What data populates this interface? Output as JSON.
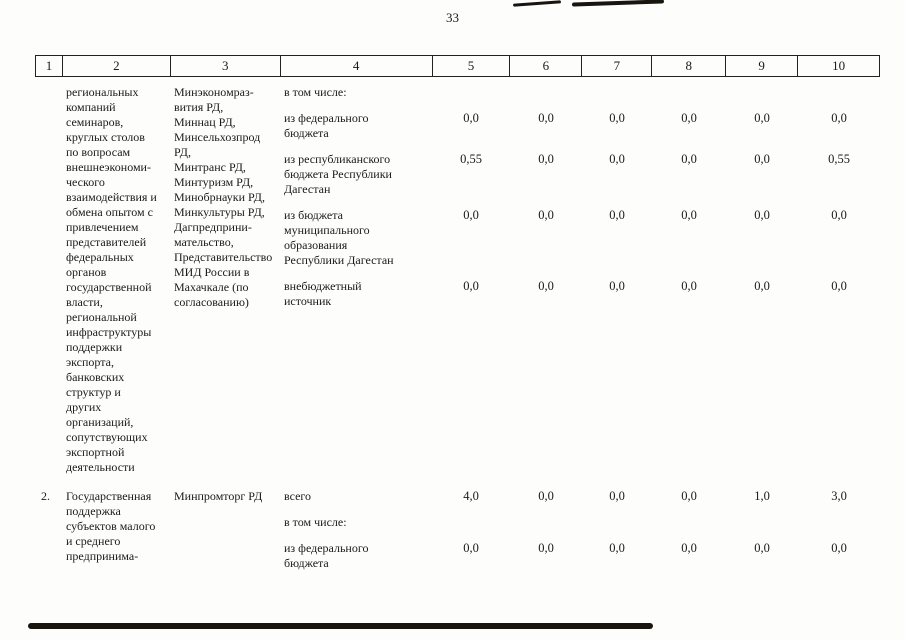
{
  "page": {
    "number": "33"
  },
  "table": {
    "header": [
      "1",
      "2",
      "3",
      "4",
      "5",
      "6",
      "7",
      "8",
      "9",
      "10"
    ],
    "rows": [
      {
        "num": "",
        "name": "региональных\nкомпаний\nсеминаров,\nкруглых столов\nпо вопросам\nвнешнеэкономи-\nческого\nвзаимодействия и\nобмена опытом с\nпривлечением\nпредставителей\nфедеральных\nорганов\nгосударственной\nвласти,\nрегиональной\nинфраструктуры\nподдержки\nэкспорта,\nбанковских\nструктур и\nдругих\nорганизаций,\nсопутствующих\nэкспортной\nдеятельности",
        "executor": "Минэкономраз-\nвития РД,\nМиннац РД,\nМинсельхозпрод\nРД,\nМинтранс РД,\nМинтуризм РД,\nМинобрнауки РД,\nМинкультуры РД,\nДагпредприни-\nмательство,\nПредставительство\nМИД России в\n Махачкале (по\nсогласованию)",
        "sublines": [
          {
            "label": "в том числе:",
            "values": [
              "",
              "",
              "",
              "",
              "",
              ""
            ]
          },
          {
            "label": "из федерального\nбюджета",
            "values": [
              "0,0",
              "0,0",
              "0,0",
              "0,0",
              "0,0",
              "0,0"
            ]
          },
          {
            "label": "из республиканского\nбюджета Республики\nДагестан",
            "values": [
              "0,55",
              "0,0",
              "0,0",
              "0,0",
              "0,0",
              "0,55"
            ]
          },
          {
            "label": "из бюджета\nмуниципального\nобразования\nРеспублики Дагестан",
            "values": [
              "0,0",
              "0,0",
              "0,0",
              "0,0",
              "0,0",
              "0,0"
            ]
          },
          {
            "label": "внебюджетный\nисточник",
            "values": [
              "0,0",
              "0,0",
              "0,0",
              "0,0",
              "0,0",
              "0,0"
            ]
          }
        ]
      },
      {
        "num": "2.",
        "name": "Государственная\nподдержка\nсубъектов малого\nи среднего\nпредпринима-",
        "executor": "Минпромторг РД",
        "sublines": [
          {
            "label": "всего",
            "values": [
              "4,0",
              "0,0",
              "0,0",
              "0,0",
              "1,0",
              "3,0"
            ]
          },
          {
            "label": "в том числе:",
            "values": [
              "",
              "",
              "",
              "",
              "",
              ""
            ]
          },
          {
            "label": "из федерального\nбюджета",
            "values": [
              "0,0",
              "0,0",
              "0,0",
              "0,0",
              "0,0",
              "0,0"
            ]
          }
        ]
      }
    ]
  }
}
